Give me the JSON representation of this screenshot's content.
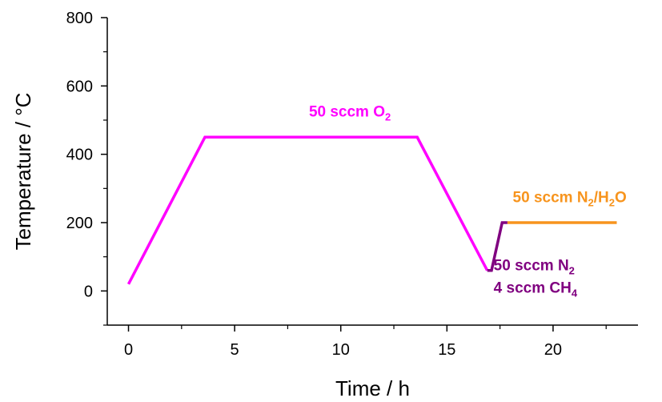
{
  "chart_data": {
    "type": "line",
    "title": "",
    "xlabel": "Time / h",
    "ylabel": "Temperature / °C",
    "xlim": [
      -1,
      24
    ],
    "ylim": [
      -100,
      800
    ],
    "xticks": [
      0,
      5,
      10,
      15,
      20
    ],
    "yticks": [
      0,
      200,
      400,
      600,
      800
    ],
    "grid": false,
    "series": [
      {
        "color": "#ff00ff",
        "points": [
          [
            0,
            20
          ],
          [
            3.6,
            450
          ],
          [
            13.6,
            450
          ],
          [
            16.9,
            60
          ]
        ]
      },
      {
        "color": "#800080",
        "points": [
          [
            16.9,
            60
          ],
          [
            17.1,
            60
          ],
          [
            17.6,
            200
          ],
          [
            17.85,
            200
          ]
        ]
      },
      {
        "color": "#f7941d",
        "points": [
          [
            17.85,
            200
          ],
          [
            23,
            200
          ]
        ]
      }
    ],
    "annotations": [
      {
        "id": "o2",
        "color": "#ff00ff",
        "parts": [
          "50 sccm O",
          "2"
        ],
        "x": 8.5,
        "y": 510
      },
      {
        "id": "n2h2o",
        "color": "#f7941d",
        "parts": [
          "50 sccm N",
          "2",
          "/H",
          "2",
          "O"
        ],
        "x": 18.1,
        "y": 260
      },
      {
        "id": "n2",
        "color": "#800080",
        "parts": [
          "50 sccm N",
          "2"
        ],
        "x": 17.2,
        "y": 60
      },
      {
        "id": "ch4",
        "color": "#800080",
        "parts": [
          "4 sccm CH",
          "4"
        ],
        "x": 17.2,
        "y": -5
      }
    ]
  }
}
